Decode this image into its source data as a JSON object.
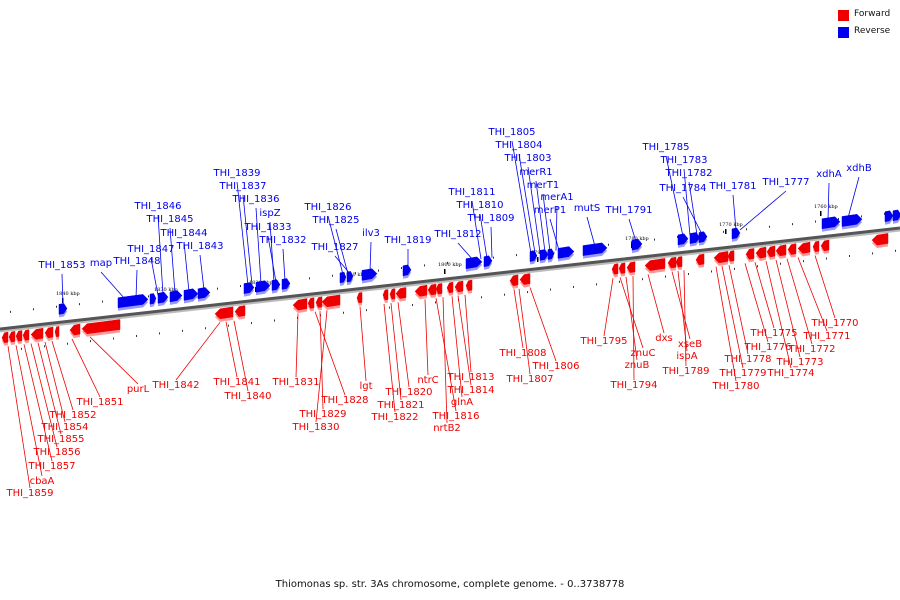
{
  "legend": {
    "forward_label": "Forward",
    "reverse_label": "Reverse",
    "forward_color": "#ee0000",
    "reverse_color": "#0000ee"
  },
  "caption": "Thiomonas sp. str. 3As chromosome, complete genome. - 0..3738778",
  "ticks": [
    "1840 kbp",
    "1830 kbp",
    "1820 kbp",
    "1810 kbp",
    "1800 kbp",
    "1790 kbp",
    "1780 kbp",
    "1770 kbp",
    "1760 kbp"
  ],
  "reverse_labels": [
    "THI_1853",
    "map",
    "THI_1848",
    "THI_1847",
    "THI_1846",
    "THI_1845",
    "THI_1844",
    "THI_1843",
    "THI_1839",
    "THI_1837",
    "THI_1836",
    "ispZ",
    "THI_1833",
    "THI_1832",
    "THI_1826",
    "THI_1825",
    "THI_1827",
    "ilv3",
    "THI_1819",
    "THI_1811",
    "THI_1810",
    "THI_1809",
    "THI_1812",
    "THI_1805",
    "THI_1804",
    "THI_1803",
    "merR1",
    "merT1",
    "merA1",
    "merP1",
    "mutS",
    "THI_1791",
    "THI_1785",
    "THI_1783",
    "THI_1782",
    "THI_1784",
    "THI_1781",
    "THI_1777",
    "xdhA",
    "xdhB"
  ],
  "forward_labels": [
    "THI_1859",
    "cbaA",
    "THI_1857",
    "THI_1856",
    "THI_1855",
    "THI_1854",
    "THI_1852",
    "THI_1851",
    "purL",
    "THI_1842",
    "THI_1841",
    "THI_1840",
    "THI_1831",
    "THI_1828",
    "THI_1829",
    "THI_1830",
    "lgt",
    "THI_1822",
    "THI_1821",
    "THI_1820",
    "ntrC",
    "THI_1816",
    "nrtB2",
    "glnA",
    "THI_1814",
    "THI_1813",
    "THI_1808",
    "THI_1807",
    "THI_1806",
    "THI_1795",
    "znuC",
    "znuB",
    "THI_1794",
    "dxs",
    "xseB",
    "ispA",
    "THI_1789",
    "THI_1780",
    "THI_1779",
    "THI_1778",
    "THI_1776",
    "THI_1775",
    "THI_1774",
    "THI_1773",
    "THI_1772",
    "THI_1771",
    "THI_1770"
  ]
}
